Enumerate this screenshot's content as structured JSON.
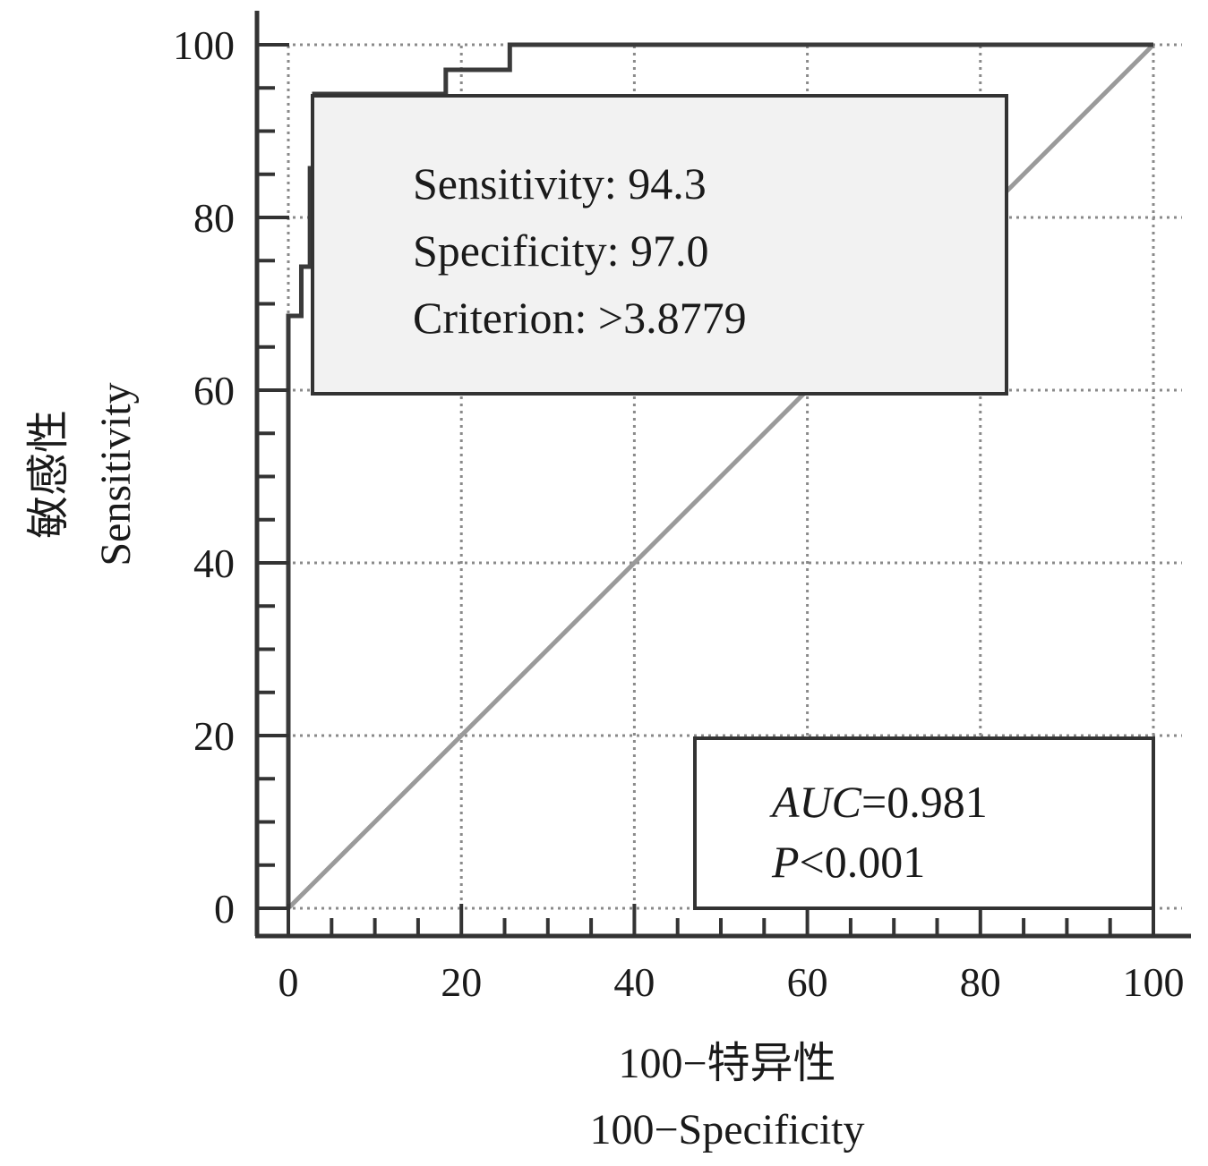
{
  "chart_data": {
    "type": "line",
    "title": "",
    "xlabel": [
      "100−特异性",
      "100−Specificity"
    ],
    "ylabel": [
      "敏感性",
      "Sensitivity"
    ],
    "xlim": [
      0,
      100
    ],
    "ylim": [
      0,
      100
    ],
    "x_ticks": [
      "0",
      "20",
      "40",
      "60",
      "80",
      "100"
    ],
    "y_ticks": [
      "0",
      "20",
      "40",
      "60",
      "80",
      "100"
    ],
    "grid": true,
    "series": [
      {
        "role": "roc-curve",
        "color": "#3a3a3a",
        "x": [
          0,
          0,
          1.5,
          1.5,
          2.5,
          2.5,
          3,
          3,
          18.2,
          18.2,
          25.6,
          25.6,
          100
        ],
        "y": [
          0,
          68.6,
          68.6,
          74.3,
          74.3,
          85.7,
          85.7,
          94.3,
          94.3,
          97.1,
          97.1,
          100,
          100
        ]
      },
      {
        "role": "reference-line",
        "color": "#9a9a9a",
        "x": [
          0,
          100
        ],
        "y": [
          0,
          100
        ]
      }
    ],
    "annotations": {
      "criterion_box": {
        "lines": [
          "Sensitivity: 94.3",
          "Specificity: 97.0",
          "Criterion: >3.8779"
        ],
        "background": "#f2f2f2"
      },
      "auc_box": {
        "auc_label": "AUC",
        "auc_value": "=0.981",
        "p_label": "P",
        "p_value": "<0.001",
        "background": "#ffffff"
      }
    }
  }
}
